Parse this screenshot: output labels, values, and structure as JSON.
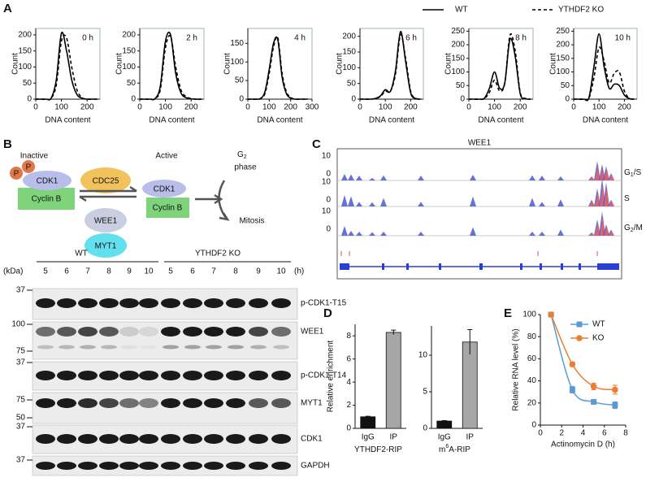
{
  "panel_labels": [
    "A",
    "B",
    "C",
    "D",
    "E"
  ],
  "chart_data": [
    {
      "type": "line",
      "annotation": "0 h",
      "xlabel": "DNA content",
      "ylabel": "Count",
      "xlim": [
        0,
        250
      ],
      "xticks": [
        0,
        100,
        200
      ],
      "ylim": [
        0,
        220
      ],
      "yticks": [
        0,
        50,
        100,
        150,
        200
      ],
      "x": [
        0,
        20,
        40,
        60,
        80,
        100,
        120,
        140,
        160,
        180,
        200,
        220,
        240
      ],
      "series": [
        {
          "name": "WT",
          "color": "#000000",
          "dash": "solid",
          "values": [
            0,
            0,
            0,
            3,
            60,
            205,
            150,
            60,
            15,
            3,
            0,
            0,
            0
          ]
        },
        {
          "name": "YTHDF2 KO",
          "color": "#000000",
          "dash": "dashed",
          "values": [
            0,
            0,
            0,
            3,
            45,
            180,
            190,
            100,
            30,
            5,
            0,
            0,
            0
          ]
        }
      ]
    },
    {
      "type": "line",
      "annotation": "2 h",
      "xlabel": "DNA content",
      "ylabel": "Count",
      "xlim": [
        0,
        250
      ],
      "xticks": [
        0,
        100,
        200
      ],
      "ylim": [
        0,
        220
      ],
      "yticks": [
        0,
        50,
        100,
        150,
        200
      ],
      "x": [
        0,
        20,
        40,
        60,
        80,
        100,
        120,
        140,
        160,
        180,
        200,
        220,
        240
      ],
      "series": [
        {
          "color": "#000000",
          "dash": "solid",
          "values": [
            0,
            0,
            0,
            2,
            40,
            180,
            200,
            80,
            20,
            5,
            1,
            0,
            0
          ]
        },
        {
          "color": "#000000",
          "dash": "dashed",
          "values": [
            0,
            0,
            0,
            2,
            30,
            160,
            195,
            100,
            30,
            8,
            2,
            0,
            0
          ]
        }
      ]
    },
    {
      "type": "line",
      "annotation": "4 h",
      "xlabel": "DNA content",
      "ylabel": "Count",
      "xlim": [
        0,
        300
      ],
      "xticks": [
        0,
        100,
        200,
        300
      ],
      "ylim": [
        0,
        190
      ],
      "yticks": [
        0,
        50,
        100,
        150
      ],
      "x": [
        0,
        20,
        40,
        60,
        80,
        100,
        120,
        140,
        160,
        180,
        200,
        220,
        240,
        260,
        280
      ],
      "series": [
        {
          "color": "#000000",
          "dash": "solid",
          "values": [
            0,
            0,
            0,
            2,
            20,
            80,
            150,
            160,
            60,
            15,
            3,
            0,
            0,
            0,
            0
          ]
        },
        {
          "color": "#000000",
          "dash": "dashed",
          "values": [
            0,
            0,
            0,
            2,
            15,
            70,
            140,
            165,
            70,
            20,
            5,
            0,
            0,
            0,
            0
          ]
        }
      ]
    },
    {
      "type": "line",
      "annotation": "6 h",
      "xlabel": "DNA content",
      "ylabel": "Count",
      "xlim": [
        0,
        250
      ],
      "xticks": [
        0,
        100,
        200
      ],
      "ylim": [
        0,
        225
      ],
      "yticks": [
        0,
        50,
        100,
        150,
        200
      ],
      "x": [
        0,
        20,
        40,
        60,
        80,
        100,
        120,
        140,
        160,
        180,
        200,
        220,
        240
      ],
      "series": [
        {
          "color": "#000000",
          "dash": "solid",
          "values": [
            0,
            0,
            0,
            2,
            10,
            30,
            25,
            90,
            215,
            120,
            20,
            2,
            0
          ]
        },
        {
          "color": "#000000",
          "dash": "dashed",
          "values": [
            0,
            0,
            0,
            2,
            8,
            25,
            25,
            80,
            205,
            130,
            25,
            3,
            0
          ]
        }
      ]
    },
    {
      "type": "line",
      "annotation": "8 h",
      "xlabel": "DNA content",
      "ylabel": "Count",
      "xlim": [
        0,
        250
      ],
      "xticks": [
        0,
        100,
        200
      ],
      "ylim": [
        0,
        260
      ],
      "yticks": [
        0,
        50,
        100,
        150,
        200,
        250
      ],
      "x": [
        0,
        20,
        40,
        60,
        80,
        100,
        120,
        140,
        160,
        180,
        200,
        220,
        240
      ],
      "series": [
        {
          "color": "#000000",
          "dash": "solid",
          "values": [
            0,
            0,
            0,
            3,
            40,
            100,
            40,
            60,
            220,
            160,
            20,
            2,
            0
          ]
        },
        {
          "color": "#000000",
          "dash": "dashed",
          "values": [
            0,
            0,
            0,
            2,
            25,
            70,
            30,
            60,
            235,
            180,
            25,
            3,
            0
          ]
        }
      ]
    },
    {
      "type": "line",
      "annotation": "10 h",
      "xlabel": "DNA content",
      "ylabel": "Count",
      "xlim": [
        0,
        250
      ],
      "xticks": [
        0,
        100,
        200
      ],
      "ylim": [
        0,
        260
      ],
      "yticks": [
        0,
        50,
        100,
        150,
        200,
        250
      ],
      "x": [
        0,
        20,
        40,
        60,
        80,
        100,
        120,
        140,
        160,
        180,
        200,
        220,
        240
      ],
      "series": [
        {
          "color": "#000000",
          "dash": "solid",
          "values": [
            0,
            0,
            0,
            5,
            120,
            240,
            120,
            40,
            55,
            50,
            15,
            2,
            0
          ]
        },
        {
          "color": "#000000",
          "dash": "dashed",
          "values": [
            0,
            0,
            0,
            3,
            80,
            190,
            140,
            60,
            95,
            100,
            30,
            3,
            0
          ]
        }
      ]
    },
    {
      "type": "bar",
      "ylabel": "Relative enrichment",
      "xlabel": [
        "YTHDF2-RIP"
      ],
      "categories": [
        "IgG",
        "IP"
      ],
      "values": [
        1,
        8.3
      ],
      "errors": [
        0.05,
        0.2
      ],
      "colors": [
        "#111111",
        "#a6a6a6"
      ],
      "ylim": [
        0,
        9
      ],
      "yticks": [
        0,
        2,
        4,
        6,
        8
      ]
    },
    {
      "type": "bar",
      "xlabel": [
        "m",
        "6",
        "A-RIP"
      ],
      "categories": [
        "IgG",
        "IP"
      ],
      "values": [
        1,
        11.8
      ],
      "errors": [
        0.05,
        1.7
      ],
      "colors": [
        "#111111",
        "#a6a6a6"
      ],
      "ylim": [
        0,
        14
      ],
      "yticks": [
        0,
        5,
        10
      ]
    },
    {
      "type": "line",
      "xlabel": "Actinomycin D (h)",
      "ylabel": "Relative RNA level (%)",
      "xlim": [
        0,
        8
      ],
      "xticks": [
        0,
        2,
        4,
        6,
        8
      ],
      "ylim": [
        0,
        100
      ],
      "yticks": [
        0,
        20,
        40,
        60,
        80,
        100
      ],
      "legend": "upper right",
      "x": [
        1,
        3,
        5,
        7
      ],
      "series": [
        {
          "name": "WT",
          "color": "#5b9bd5",
          "marker": "square",
          "values": [
            100,
            32,
            21,
            18
          ],
          "errors": [
            1,
            3,
            1,
            3
          ]
        },
        {
          "name": "KO",
          "color": "#ed7d31",
          "marker": "circle",
          "values": [
            100,
            55,
            35,
            32
          ],
          "errors": [
            1,
            2,
            3,
            4
          ]
        }
      ]
    }
  ],
  "diagram": {
    "inactive": "Inactive",
    "active": "Active",
    "phospho": [
      "P",
      "P"
    ],
    "cdk1": "CDK1",
    "cyclin": "Cyclin B",
    "cdc25": "CDC25",
    "wee1": "WEE1",
    "myt1": "MYT1",
    "g2": [
      "G",
      "2"
    ],
    "phase": "phase",
    "mitosis": "Mitosis"
  },
  "blot": {
    "groups": [
      "WT",
      "YTHDF2 KO"
    ],
    "unit": "(kDa)",
    "time_unit": "(h)",
    "lanes": [
      5,
      6,
      7,
      8,
      9,
      10,
      5,
      6,
      7,
      8,
      9,
      10
    ],
    "rows": [
      {
        "label": "p-CDK1-T15",
        "markers": [
          37
        ]
      },
      {
        "label": "WEE1",
        "markers": [
          100,
          75
        ]
      },
      {
        "label": "p-CDK1-T14",
        "markers": [
          37
        ]
      },
      {
        "label": "MYT1",
        "markers": [
          75,
          50
        ]
      },
      {
        "label": "CDK1",
        "markers": [
          37
        ]
      },
      {
        "label": "GAPDH",
        "markers": [
          37
        ]
      }
    ]
  },
  "track": {
    "title": "WEE1",
    "yticks": [
      0,
      10
    ],
    "rows": [
      {
        "label": [
          "G",
          "1",
          "/S"
        ]
      },
      {
        "label": [
          "S"
        ]
      },
      {
        "label": [
          "G",
          "2",
          "/M"
        ]
      }
    ]
  }
}
